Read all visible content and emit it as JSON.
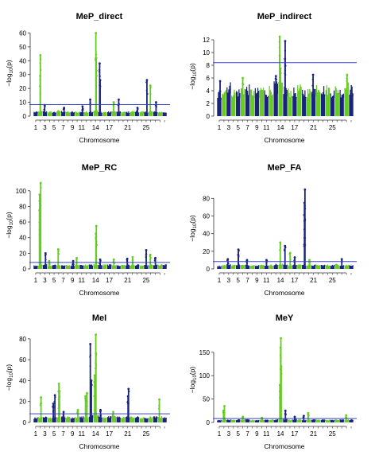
{
  "chart_data": [
    {
      "type": "scatter",
      "title": "MeP_direct",
      "xlabel": "Chromosome",
      "ylabel_main": "−log",
      "ylabel_sub": "10",
      "ylabel_tail": "(p)",
      "ylim": [
        0,
        62
      ],
      "yticks": [
        0,
        10,
        20,
        30,
        40,
        50,
        60
      ],
      "threshold": 8.3,
      "x_tick_labels": [
        "1",
        "3",
        "5",
        "7",
        "9",
        "11",
        "14",
        "17",
        "21",
        "25"
      ],
      "chromosomes": 29,
      "base_levels": [
        3.5,
        4,
        4,
        3.5,
        3.5,
        4.5,
        4,
        3.5,
        3.5,
        3.5,
        3.5,
        3.5,
        4,
        5,
        3.5,
        3.5,
        3.5,
        4,
        3.5,
        3.5,
        3.5,
        4,
        4,
        3.5,
        3.5,
        4,
        3.5,
        3.5,
        3.5
      ],
      "peaks": [
        {
          "chromosome": 2,
          "value": 44
        },
        {
          "chromosome": 2,
          "value": 29
        },
        {
          "chromosome": 3,
          "value": 8
        },
        {
          "chromosome": 14,
          "value": 60
        },
        {
          "chromosome": 14,
          "value": 42
        },
        {
          "chromosome": 15,
          "value": 38
        },
        {
          "chromosome": 15,
          "value": 26
        },
        {
          "chromosome": 13,
          "value": 12
        },
        {
          "chromosome": 18,
          "value": 10
        },
        {
          "chromosome": 19,
          "value": 12
        },
        {
          "chromosome": 25,
          "value": 26
        },
        {
          "chromosome": 26,
          "value": 22
        },
        {
          "chromosome": 27,
          "value": 10
        },
        {
          "chromosome": 7,
          "value": 6
        },
        {
          "chromosome": 11,
          "value": 7
        },
        {
          "chromosome": 23,
          "value": 6
        }
      ]
    },
    {
      "type": "scatter",
      "title": "MeP_indirect",
      "xlabel": "Chromosome",
      "ylabel_main": "−log",
      "ylabel_sub": "10",
      "ylabel_tail": "(p)",
      "ylim": [
        0,
        12.5
      ],
      "yticks": [
        0,
        2,
        4,
        6,
        8,
        10,
        12
      ],
      "threshold": 8.4,
      "x_tick_labels": [
        "1",
        "3",
        "5",
        "7",
        "9",
        "11",
        "14",
        "17",
        "21",
        "25"
      ],
      "chromosomes": 29,
      "base_levels": [
        4,
        5,
        5.5,
        4.5,
        4.5,
        5,
        5,
        4.5,
        4.5,
        5,
        4.5,
        5,
        5.5,
        6,
        5,
        4.5,
        4.5,
        5,
        4.5,
        4.5,
        5,
        5.5,
        5,
        5,
        4.5,
        5,
        4.5,
        5.5,
        5
      ],
      "peaks": [
        {
          "chromosome": 14,
          "value": 12.5
        },
        {
          "chromosome": 14,
          "value": 9.5
        },
        {
          "chromosome": 14,
          "value": 7.5
        },
        {
          "chromosome": 15,
          "value": 11.8
        },
        {
          "chromosome": 15,
          "value": 9
        },
        {
          "chromosome": 13,
          "value": 6.3
        },
        {
          "chromosome": 21,
          "value": 6.5
        },
        {
          "chromosome": 28,
          "value": 6.5
        },
        {
          "chromosome": 1,
          "value": 5.5
        },
        {
          "chromosome": 6,
          "value": 6
        }
      ]
    },
    {
      "type": "scatter",
      "title": "MeP_RC",
      "xlabel": "Chromosome",
      "ylabel_main": "−log",
      "ylabel_sub": "10",
      "ylabel_tail": "(p)",
      "ylim": [
        0,
        112
      ],
      "yticks": [
        0,
        20,
        40,
        60,
        80,
        100
      ],
      "threshold": 8.3,
      "x_tick_labels": [
        "1",
        "3",
        "5",
        "7",
        "9",
        "11",
        "14",
        "17",
        "21",
        "25"
      ],
      "chromosomes": 29,
      "base_levels": [
        5,
        6,
        6,
        5,
        6,
        6,
        6,
        5,
        5,
        6,
        6,
        6,
        6,
        7,
        6,
        6,
        6,
        6,
        5,
        6,
        6,
        6,
        6,
        5,
        5,
        6,
        6,
        6,
        6
      ],
      "peaks": [
        {
          "chromosome": 2,
          "value": 110
        },
        {
          "chromosome": 2,
          "value": 95
        },
        {
          "chromosome": 2,
          "value": 75
        },
        {
          "chromosome": 2,
          "value": 45
        },
        {
          "chromosome": 3,
          "value": 20
        },
        {
          "chromosome": 4,
          "value": 10
        },
        {
          "chromosome": 6,
          "value": 25
        },
        {
          "chromosome": 9,
          "value": 10
        },
        {
          "chromosome": 10,
          "value": 14
        },
        {
          "chromosome": 14,
          "value": 55
        },
        {
          "chromosome": 14,
          "value": 45
        },
        {
          "chromosome": 15,
          "value": 12
        },
        {
          "chromosome": 18,
          "value": 12
        },
        {
          "chromosome": 21,
          "value": 13
        },
        {
          "chromosome": 22,
          "value": 15
        },
        {
          "chromosome": 25,
          "value": 24
        },
        {
          "chromosome": 26,
          "value": 18
        },
        {
          "chromosome": 27,
          "value": 14
        }
      ]
    },
    {
      "type": "scatter",
      "title": "MeP_FA",
      "xlabel": "Chromosome",
      "ylabel_main": "−log",
      "ylabel_sub": "10",
      "ylabel_tail": "(p)",
      "ylim": [
        0,
        92
      ],
      "yticks": [
        0,
        20,
        40,
        60,
        80
      ],
      "threshold": 8.3,
      "x_tick_labels": [
        "1",
        "3",
        "5",
        "7",
        "9",
        "11",
        "14",
        "17",
        "21",
        "25"
      ],
      "chromosomes": 29,
      "base_levels": [
        4,
        5,
        6,
        5,
        6,
        5,
        5,
        5,
        5,
        5,
        5,
        5,
        6,
        6,
        6,
        5,
        5,
        6,
        5,
        5,
        5,
        5,
        5,
        5,
        5,
        6,
        5,
        5,
        5
      ],
      "peaks": [
        {
          "chromosome": 3,
          "value": 11
        },
        {
          "chromosome": 5,
          "value": 22
        },
        {
          "chromosome": 5,
          "value": 16
        },
        {
          "chromosome": 7,
          "value": 10
        },
        {
          "chromosome": 11,
          "value": 10
        },
        {
          "chromosome": 14,
          "value": 30
        },
        {
          "chromosome": 15,
          "value": 26
        },
        {
          "chromosome": 16,
          "value": 18
        },
        {
          "chromosome": 17,
          "value": 13
        },
        {
          "chromosome": 19,
          "value": 90
        },
        {
          "chromosome": 19,
          "value": 75
        },
        {
          "chromosome": 19,
          "value": 55
        },
        {
          "chromosome": 19,
          "value": 35
        },
        {
          "chromosome": 20,
          "value": 10
        },
        {
          "chromosome": 27,
          "value": 11
        }
      ]
    },
    {
      "type": "scatter",
      "title": "MeI",
      "xlabel": "Chromosome",
      "ylabel_main": "−log",
      "ylabel_sub": "10",
      "ylabel_tail": "(p)",
      "ylim": [
        0,
        86
      ],
      "yticks": [
        0,
        20,
        40,
        60,
        80
      ],
      "threshold": 8.3,
      "x_tick_labels": [
        "1",
        "3",
        "5",
        "7",
        "9",
        "11",
        "14",
        "17",
        "21",
        "25"
      ],
      "chromosomes": 29,
      "base_levels": [
        5,
        6,
        6,
        5,
        6,
        7,
        6,
        6,
        5,
        6,
        6,
        6,
        7,
        8,
        7,
        6,
        6,
        7,
        6,
        6,
        6,
        6,
        6,
        5,
        5,
        6,
        6,
        6,
        6
      ],
      "peaks": [
        {
          "chromosome": 2,
          "value": 24
        },
        {
          "chromosome": 5,
          "value": 26
        },
        {
          "chromosome": 5,
          "value": 18
        },
        {
          "chromosome": 6,
          "value": 37
        },
        {
          "chromosome": 6,
          "value": 30
        },
        {
          "chromosome": 6,
          "value": 22
        },
        {
          "chromosome": 7,
          "value": 10
        },
        {
          "chromosome": 10,
          "value": 12
        },
        {
          "chromosome": 12,
          "value": 28
        },
        {
          "chromosome": 12,
          "value": 25
        },
        {
          "chromosome": 13,
          "value": 75
        },
        {
          "chromosome": 13,
          "value": 40
        },
        {
          "chromosome": 14,
          "value": 84
        },
        {
          "chromosome": 14,
          "value": 66
        },
        {
          "chromosome": 14,
          "value": 45
        },
        {
          "chromosome": 15,
          "value": 12
        },
        {
          "chromosome": 18,
          "value": 10
        },
        {
          "chromosome": 21,
          "value": 32
        },
        {
          "chromosome": 21,
          "value": 25
        },
        {
          "chromosome": 28,
          "value": 22
        }
      ]
    },
    {
      "type": "scatter",
      "title": "MeY",
      "xlabel": "Chromosome",
      "ylabel_main": "−log",
      "ylabel_sub": "10",
      "ylabel_tail": "(p)",
      "ylim": [
        0,
        182
      ],
      "yticks": [
        0,
        50,
        100,
        150
      ],
      "threshold": 8.3,
      "x_tick_labels": [
        "1",
        "3",
        "5",
        "7",
        "9",
        "11",
        "14",
        "17",
        "21",
        "25"
      ],
      "chromosomes": 29,
      "base_levels": [
        6,
        7,
        7,
        6,
        7,
        7,
        7,
        6,
        6,
        7,
        7,
        7,
        7,
        9,
        8,
        7,
        7,
        7,
        6,
        7,
        7,
        7,
        7,
        6,
        6,
        7,
        7,
        7,
        7
      ],
      "peaks": [
        {
          "chromosome": 2,
          "value": 35
        },
        {
          "chromosome": 2,
          "value": 25
        },
        {
          "chromosome": 6,
          "value": 12
        },
        {
          "chromosome": 10,
          "value": 10
        },
        {
          "chromosome": 14,
          "value": 180
        },
        {
          "chromosome": 14,
          "value": 160
        },
        {
          "chromosome": 14,
          "value": 120
        },
        {
          "chromosome": 14,
          "value": 80
        },
        {
          "chromosome": 15,
          "value": 25
        },
        {
          "chromosome": 17,
          "value": 12
        },
        {
          "chromosome": 19,
          "value": 14
        },
        {
          "chromosome": 20,
          "value": 20
        },
        {
          "chromosome": 28,
          "value": 15
        }
      ]
    }
  ],
  "colors": {
    "odd": "#1a237e",
    "even": "#66cc22",
    "threshold": "#3344cc",
    "axis": "#333333"
  }
}
